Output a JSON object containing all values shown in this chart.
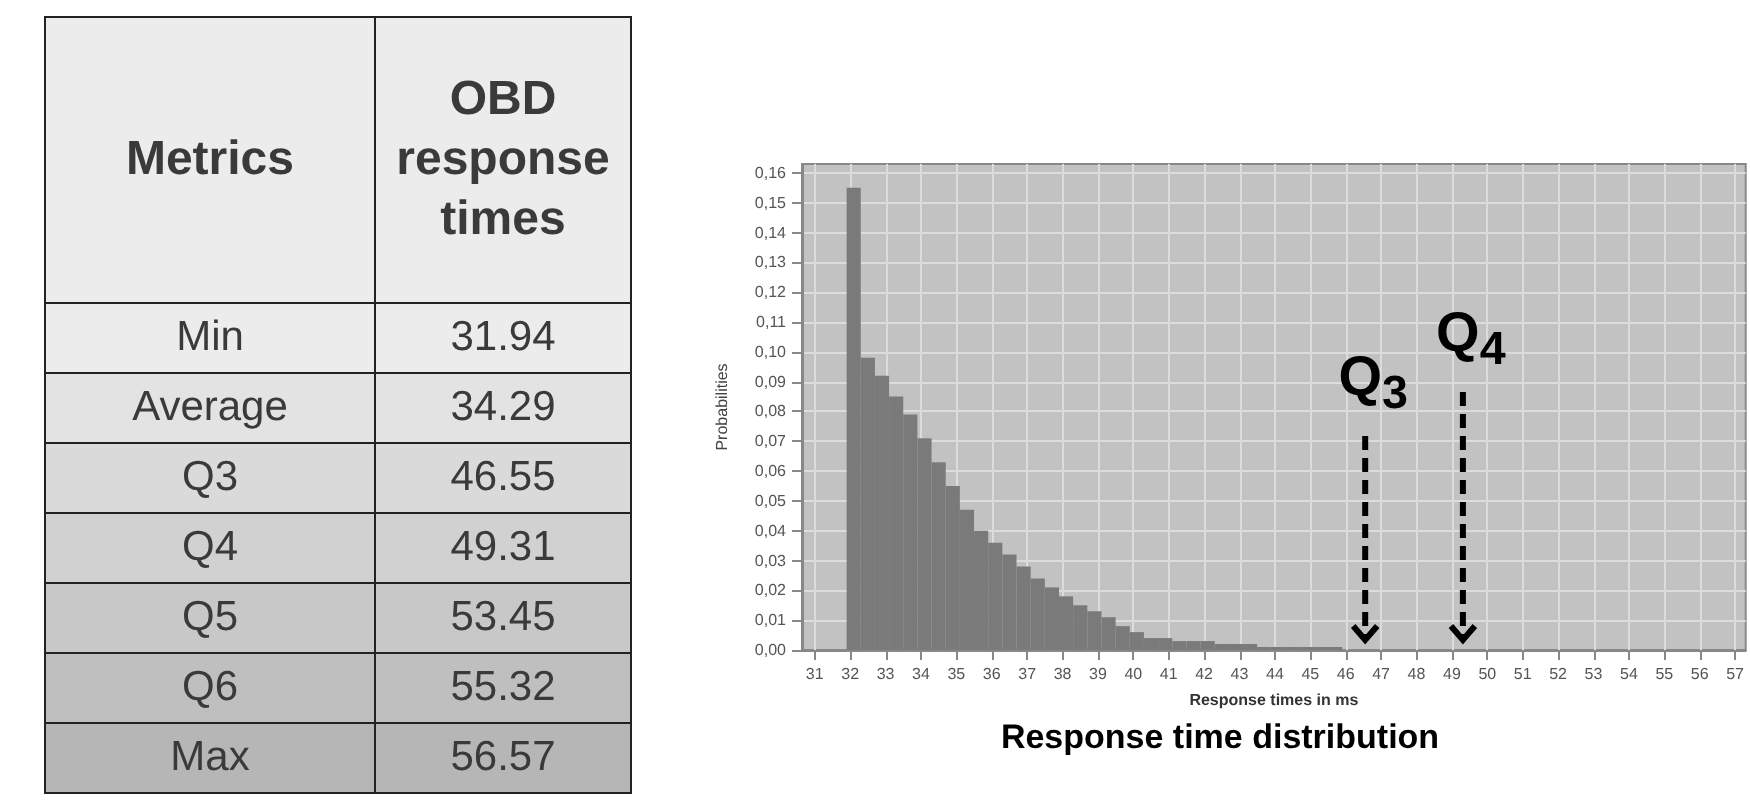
{
  "chart_data": [
    {
      "type": "other",
      "xlabel": "Metrics",
      "ylabel": "OBD response times",
      "categories": [
        "Min",
        "Average",
        "Q3",
        "Q4",
        "Q5",
        "Q6",
        "Max"
      ],
      "values": [
        31.94,
        34.29,
        46.55,
        49.31,
        53.45,
        55.32,
        56.57
      ],
      "data_labels": true
    },
    {
      "type": "histogram",
      "title": "Response time distribution",
      "xlabel": "Response times in ms",
      "ylabel": "Probabilities",
      "color": "#7a7a7a",
      "grid": true,
      "bins": [
        31.9,
        32.3,
        32.7,
        33.1,
        33.5,
        33.9,
        34.3,
        34.7,
        35.1,
        35.5,
        35.9,
        36.3,
        36.7,
        37.1,
        37.5,
        37.9,
        38.3,
        38.7,
        39.1,
        39.5,
        39.9,
        40.3,
        40.7,
        41.1,
        41.5,
        41.9,
        42.3,
        42.7,
        43.1,
        43.5,
        43.9,
        44.3,
        44.7,
        45.1,
        45.5,
        45.9
      ],
      "values": [
        0.155,
        0.098,
        0.092,
        0.085,
        0.079,
        0.071,
        0.063,
        0.055,
        0.047,
        0.04,
        0.036,
        0.032,
        0.028,
        0.024,
        0.021,
        0.018,
        0.015,
        0.013,
        0.011,
        0.008,
        0.006,
        0.004,
        0.004,
        0.003,
        0.003,
        0.003,
        0.002,
        0.002,
        0.002,
        0.001,
        0.001,
        0.001,
        0.001,
        0.001,
        0.001
      ],
      "xlim": [
        30.64,
        57.3
      ],
      "xticks": [
        31,
        32,
        33,
        34,
        35,
        36,
        37,
        38,
        39,
        40,
        41,
        42,
        43,
        44,
        45,
        46,
        47,
        48,
        49,
        50,
        51,
        52,
        53,
        54,
        55,
        56,
        57
      ],
      "ylim": [
        0,
        0.163
      ],
      "yticks": [
        {
          "value": 0,
          "label": "0,00"
        },
        {
          "value": 0.01,
          "label": "0,01"
        },
        {
          "value": 0.02,
          "label": "0,02"
        },
        {
          "value": 0.03,
          "label": "0,03"
        },
        {
          "value": 0.04,
          "label": "0,04"
        },
        {
          "value": 0.05,
          "label": "0,05"
        },
        {
          "value": 0.06,
          "label": "0,06"
        },
        {
          "value": 0.07,
          "label": "0,07"
        },
        {
          "value": 0.08,
          "label": "0,08"
        },
        {
          "value": 0.09,
          "label": "0,09"
        },
        {
          "value": 0.1,
          "label": "0,10"
        },
        {
          "value": 0.11,
          "label": "0,11"
        },
        {
          "value": 0.12,
          "label": "0,12"
        },
        {
          "value": 0.13,
          "label": "0,13"
        },
        {
          "value": 0.14,
          "label": "0,14"
        },
        {
          "value": 0.15,
          "label": "0,15"
        },
        {
          "value": 0.16,
          "label": "0,16"
        }
      ],
      "ref_lines": [
        {
          "axis": "x",
          "value": 46.55,
          "label": "Q$_{3}$",
          "color": "#000000",
          "line_style": "dashed"
        },
        {
          "axis": "x",
          "value": 49.31,
          "label": "Q$_{4}$",
          "color": "#000000",
          "line_style": "dashed"
        }
      ]
    }
  ]
}
